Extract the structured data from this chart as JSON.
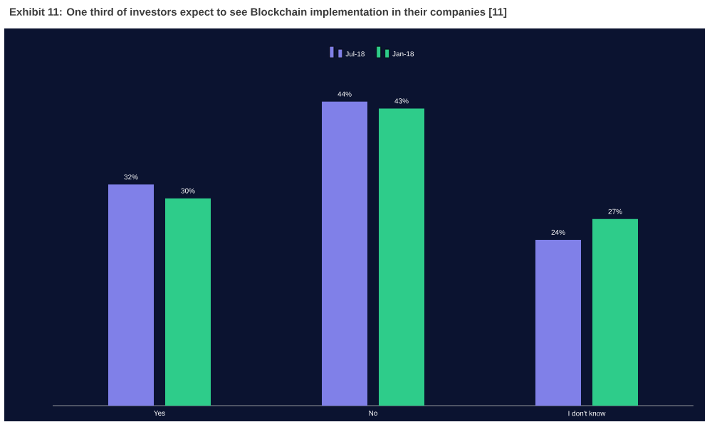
{
  "chart_data": {
    "type": "bar",
    "title": "Exhibit 11: One third of investors expect to see Blockchain implementation in their companies [11]",
    "categories": [
      "Yes",
      "No",
      "I don't know"
    ],
    "series": [
      {
        "name": "Jul-18",
        "color": "#8080e8",
        "values": [
          32,
          44,
          24
        ],
        "value_labels": [
          "32%",
          "44%",
          "24%"
        ]
      },
      {
        "name": "Jan-18",
        "color": "#2ecc8a",
        "values": [
          30,
          43,
          27
        ],
        "value_labels": [
          "30%",
          "43%",
          "27%"
        ]
      }
    ],
    "legend": "top"
  }
}
